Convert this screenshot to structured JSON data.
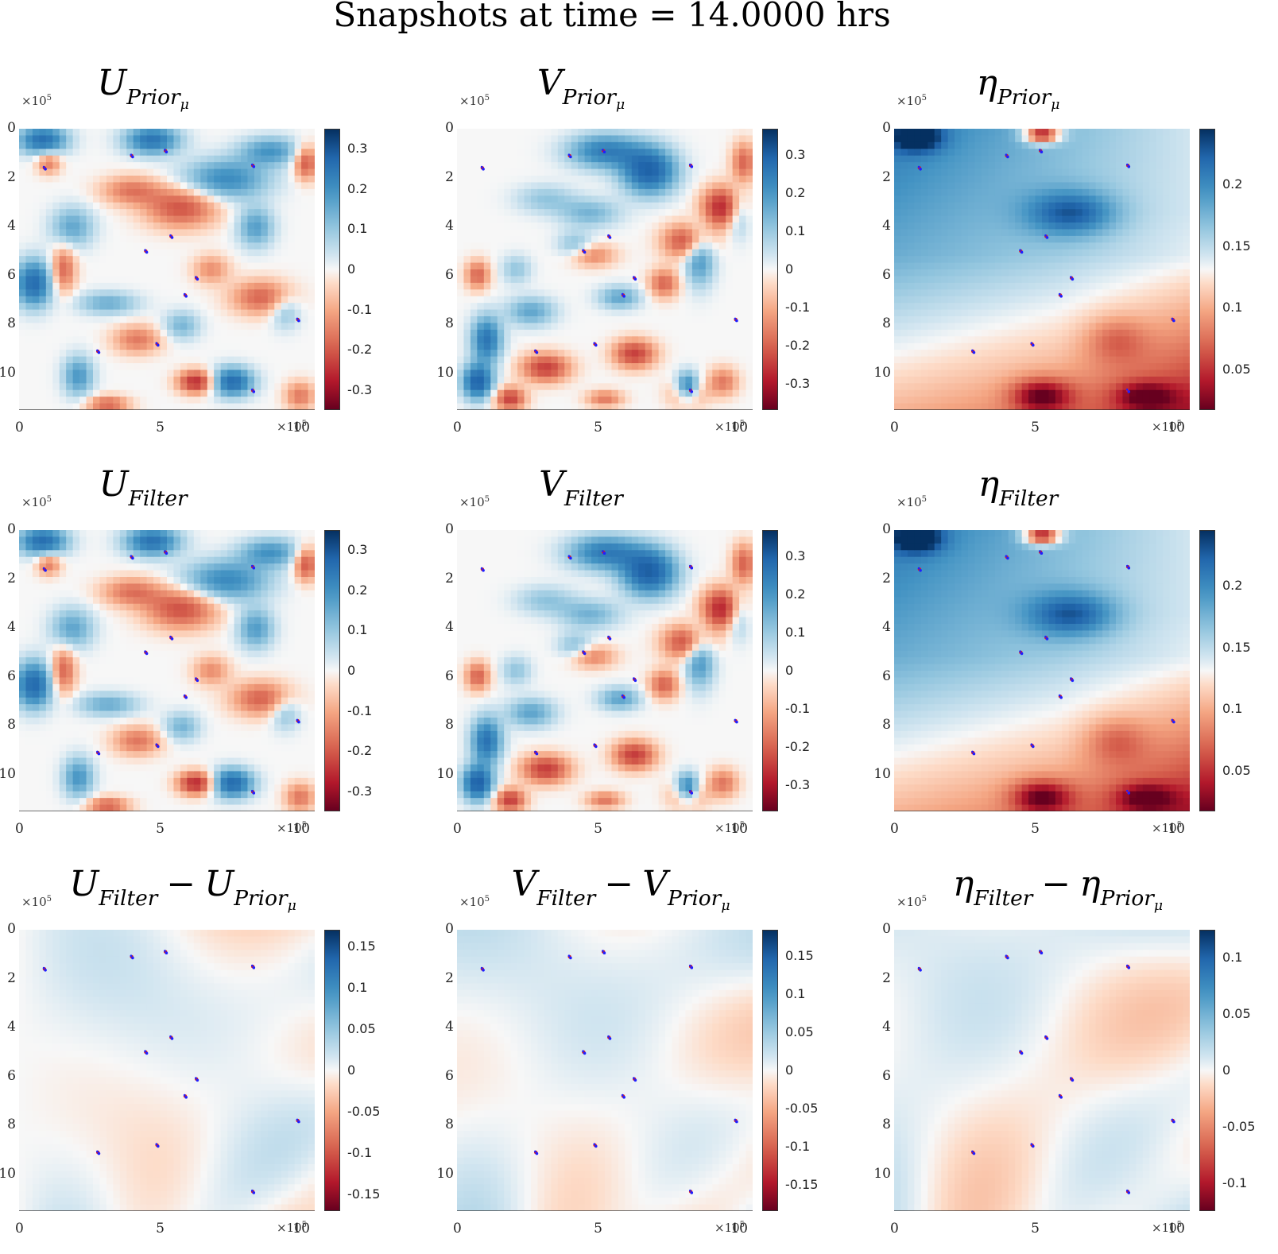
{
  "figure_title": "Snapshots at time = 14.0000 hrs",
  "axis_scale_label": "×10",
  "axis_scale_exp": "5",
  "colors": {
    "neg": "#67001f",
    "mid": "#f7f7f7",
    "pos": "#053061",
    "marker_red": "#e31a1c",
    "marker_blue": "#1f1fff"
  },
  "chart_data": [
    {
      "id": "u_prior",
      "type": "heatmap",
      "row": 0,
      "col": 0,
      "title": {
        "base": "U",
        "sub": "Prior",
        "subsub": "μ"
      },
      "x_ticks": [
        "0",
        "5",
        "10"
      ],
      "y_ticks": [
        "0",
        "2",
        "4",
        "6",
        "8",
        "10"
      ],
      "xlim": [
        0,
        1050000
      ],
      "ylim": [
        0,
        1150000
      ],
      "clim": [
        -0.35,
        0.35
      ],
      "colorbar_ticks": [
        "0.3",
        "0.2",
        "0.1",
        "0",
        "-0.1",
        "-0.2",
        "-0.3"
      ],
      "colorbar_values": [
        0.3,
        0.2,
        0.1,
        0,
        -0.1,
        -0.2,
        -0.3
      ]
    },
    {
      "id": "v_prior",
      "type": "heatmap",
      "row": 0,
      "col": 1,
      "title": {
        "base": "V",
        "sub": "Prior",
        "subsub": "μ"
      },
      "x_ticks": [
        "0",
        "5",
        "10"
      ],
      "y_ticks": [
        "0",
        "2",
        "4",
        "6",
        "8",
        "10"
      ],
      "xlim": [
        0,
        1050000
      ],
      "ylim": [
        0,
        1150000
      ],
      "clim": [
        -0.37,
        0.37
      ],
      "colorbar_ticks": [
        "0.3",
        "0.2",
        "0.1",
        "0",
        "-0.1",
        "-0.2",
        "-0.3"
      ],
      "colorbar_values": [
        0.3,
        0.2,
        0.1,
        0,
        -0.1,
        -0.2,
        -0.3
      ]
    },
    {
      "id": "eta_prior",
      "type": "heatmap",
      "row": 0,
      "col": 2,
      "title": {
        "base": "η",
        "sub": "Prior",
        "subsub": "μ"
      },
      "x_ticks": [
        "0",
        "5",
        "10"
      ],
      "y_ticks": [
        "0",
        "2",
        "4",
        "6",
        "8",
        "10"
      ],
      "xlim": [
        0,
        1050000
      ],
      "ylim": [
        0,
        1150000
      ],
      "clim": [
        0.017,
        0.245
      ],
      "colorbar_ticks": [
        "0.2",
        "0.15",
        "0.1",
        "0.05"
      ],
      "colorbar_values": [
        0.2,
        0.15,
        0.1,
        0.05
      ]
    },
    {
      "id": "u_filter",
      "type": "heatmap",
      "row": 1,
      "col": 0,
      "title": {
        "base": "U",
        "sub": "Filter",
        "subsub": ""
      },
      "x_ticks": [
        "0",
        "5",
        "10"
      ],
      "y_ticks": [
        "0",
        "2",
        "4",
        "6",
        "8",
        "10"
      ],
      "xlim": [
        0,
        1050000
      ],
      "ylim": [
        0,
        1150000
      ],
      "clim": [
        -0.35,
        0.35
      ],
      "colorbar_ticks": [
        "0.3",
        "0.2",
        "0.1",
        "0",
        "-0.1",
        "-0.2",
        "-0.3"
      ],
      "colorbar_values": [
        0.3,
        0.2,
        0.1,
        0,
        -0.1,
        -0.2,
        -0.3
      ]
    },
    {
      "id": "v_filter",
      "type": "heatmap",
      "row": 1,
      "col": 1,
      "title": {
        "base": "V",
        "sub": "Filter",
        "subsub": ""
      },
      "x_ticks": [
        "0",
        "5",
        "10"
      ],
      "y_ticks": [
        "0",
        "2",
        "4",
        "6",
        "8",
        "10"
      ],
      "xlim": [
        0,
        1050000
      ],
      "ylim": [
        0,
        1150000
      ],
      "clim": [
        -0.37,
        0.37
      ],
      "colorbar_ticks": [
        "0.3",
        "0.2",
        "0.1",
        "0",
        "-0.1",
        "-0.2",
        "-0.3"
      ],
      "colorbar_values": [
        0.3,
        0.2,
        0.1,
        0,
        -0.1,
        -0.2,
        -0.3
      ]
    },
    {
      "id": "eta_filter",
      "type": "heatmap",
      "row": 1,
      "col": 2,
      "title": {
        "base": "η",
        "sub": "Filter",
        "subsub": ""
      },
      "x_ticks": [
        "0",
        "5",
        "10"
      ],
      "y_ticks": [
        "0",
        "2",
        "4",
        "6",
        "8",
        "10"
      ],
      "xlim": [
        0,
        1050000
      ],
      "ylim": [
        0,
        1150000
      ],
      "clim": [
        0.017,
        0.245
      ],
      "colorbar_ticks": [
        "0.2",
        "0.15",
        "0.1",
        "0.05"
      ],
      "colorbar_values": [
        0.2,
        0.15,
        0.1,
        0.05
      ]
    },
    {
      "id": "u_diff",
      "type": "heatmap",
      "row": 2,
      "col": 0,
      "title": {
        "base": "U",
        "sub": "Filter",
        "subsub": "",
        "minus": "U",
        "minus_sub": "Prior",
        "minus_subsub": "μ"
      },
      "x_ticks": [
        "0",
        "5",
        "10"
      ],
      "y_ticks": [
        "0",
        "2",
        "4",
        "6",
        "8",
        "10"
      ],
      "xlim": [
        0,
        1050000
      ],
      "ylim": [
        0,
        1150000
      ],
      "clim": [
        -0.17,
        0.17
      ],
      "colorbar_ticks": [
        "0.15",
        "0.1",
        "0.05",
        "0",
        "-0.05",
        "-0.1",
        "-0.15"
      ],
      "colorbar_values": [
        0.15,
        0.1,
        0.05,
        0,
        -0.05,
        -0.1,
        -0.15
      ]
    },
    {
      "id": "v_diff",
      "type": "heatmap",
      "row": 2,
      "col": 1,
      "title": {
        "base": "V",
        "sub": "Filter",
        "subsub": "",
        "minus": "V",
        "minus_sub": "Prior",
        "minus_subsub": "μ"
      },
      "x_ticks": [
        "0",
        "5",
        "10"
      ],
      "y_ticks": [
        "0",
        "2",
        "4",
        "6",
        "8",
        "10"
      ],
      "xlim": [
        0,
        1050000
      ],
      "ylim": [
        0,
        1150000
      ],
      "clim": [
        -0.185,
        0.185
      ],
      "colorbar_ticks": [
        "0.15",
        "0.1",
        "0.05",
        "0",
        "-0.05",
        "-0.1",
        "-0.15"
      ],
      "colorbar_values": [
        0.15,
        0.1,
        0.05,
        0,
        -0.05,
        -0.1,
        -0.15
      ]
    },
    {
      "id": "eta_diff",
      "type": "heatmap",
      "row": 2,
      "col": 2,
      "title": {
        "base": "η",
        "sub": "Filter",
        "subsub": "",
        "minus": "η",
        "minus_sub": "Prior",
        "minus_subsub": "μ"
      },
      "x_ticks": [
        "0",
        "5",
        "10"
      ],
      "y_ticks": [
        "0",
        "2",
        "4",
        "6",
        "8",
        "10"
      ],
      "xlim": [
        0,
        1050000
      ],
      "ylim": [
        0,
        1150000
      ],
      "clim": [
        -0.125,
        0.125
      ],
      "colorbar_ticks": [
        "0.1",
        "0.05",
        "0",
        "-0.05",
        "-0.1"
      ],
      "colorbar_values": [
        0.1,
        0.05,
        0,
        -0.05,
        -0.1
      ]
    }
  ],
  "drifter_positions_x1e5": [
    [
      0.9,
      1.6
    ],
    [
      4.0,
      1.1
    ],
    [
      5.2,
      0.9
    ],
    [
      8.3,
      1.5
    ],
    [
      5.4,
      4.4
    ],
    [
      4.5,
      5.0
    ],
    [
      6.3,
      6.1
    ],
    [
      5.9,
      6.8
    ],
    [
      9.9,
      7.8
    ],
    [
      4.9,
      8.8
    ],
    [
      2.8,
      9.1
    ],
    [
      8.3,
      10.7
    ]
  ]
}
